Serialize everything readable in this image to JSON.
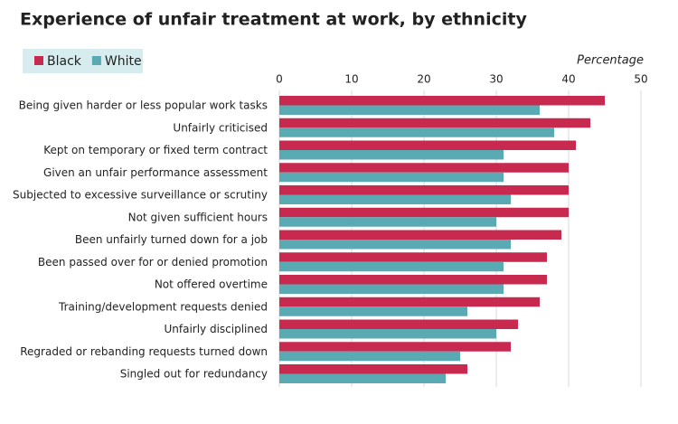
{
  "chart_data": {
    "type": "hbar",
    "title": "Experience of unfair treatment at work, by ethnicity",
    "x_label": "Percentage",
    "categories": [
      "Being given harder or less popular work tasks",
      "Unfairly criticised",
      "Kept on temporary or fixed term contract",
      "Given an unfair performance assessment",
      "Subjected to excessive surveillance or scrutiny",
      "Not given sufficient hours",
      "Been unfairly turned down for a job",
      "Been passed over for or denied promotion",
      "Not offered overtime",
      "Training/development requests denied",
      "Unfairly disciplined",
      "Regraded or rebanding requests turned down",
      "Singled out for redundancy"
    ],
    "series": [
      {
        "name": "Black",
        "color": "#c8294f",
        "values": [
          45,
          43,
          41,
          40,
          40,
          40,
          39,
          37,
          37,
          36,
          33,
          32,
          26
        ]
      },
      {
        "name": "White",
        "color": "#5aaab3",
        "values": [
          36,
          38,
          31,
          31,
          32,
          30,
          32,
          31,
          31,
          26,
          30,
          25,
          23
        ]
      }
    ],
    "xlim": [
      0,
      50
    ],
    "xticks": [
      0,
      10,
      20,
      30,
      40,
      50
    ],
    "grid": true,
    "legend": "top-left"
  }
}
